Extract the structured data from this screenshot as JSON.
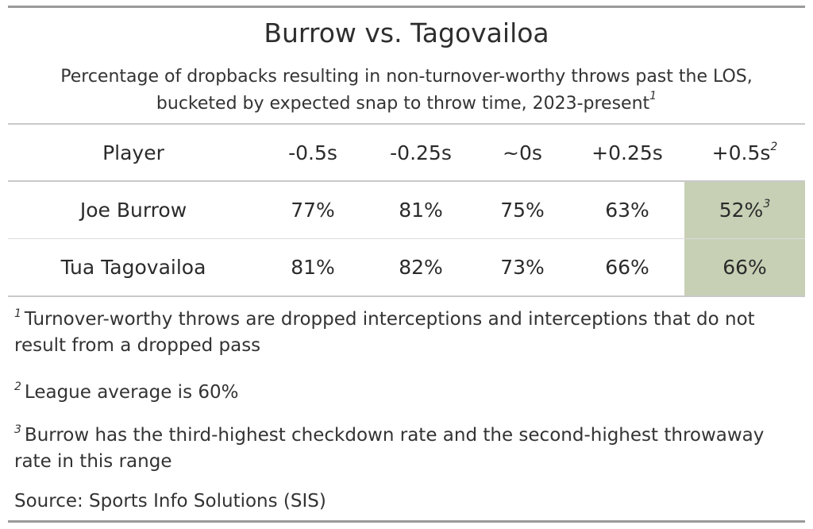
{
  "chart_data": {
    "type": "table",
    "title": "Burrow vs. Tagovailoa",
    "subtitle_line1": "Percentage of dropbacks resulting in non-turnover-worthy throws past the LOS,",
    "subtitle_line2": "bucketed by expected snap to throw time, 2023-present",
    "subtitle_footnote_mark": "1",
    "columns": [
      "Player",
      "-0.5s",
      "-0.25s",
      "~0s",
      "+0.25s",
      "+0.5s"
    ],
    "column_footnote_marks": [
      "",
      "",
      "",
      "",
      "",
      "2"
    ],
    "rows": [
      {
        "player": "Joe Burrow",
        "values": [
          "77%",
          "81%",
          "75%",
          "63%",
          "52%"
        ],
        "value_footnote_marks": [
          "",
          "",
          "",
          "",
          "3"
        ]
      },
      {
        "player": "Tua Tagovailoa",
        "values": [
          "81%",
          "82%",
          "73%",
          "66%",
          "66%"
        ],
        "value_footnote_marks": [
          "",
          "",
          "",
          "",
          ""
        ]
      }
    ],
    "highlight_color": "#c7d0b5",
    "highlight_column": "+0.5s"
  },
  "footnotes": [
    {
      "mark": "1",
      "text": "Turnover-worthy throws are dropped interceptions and interceptions that do not result from a dropped pass"
    },
    {
      "mark": "2",
      "text": "League average is 60%"
    },
    {
      "mark": "3",
      "text": "Burrow has the third-highest checkdown rate and the second-highest throwaway rate in this range"
    }
  ],
  "source": "Source: Sports Info Solutions (SIS)"
}
